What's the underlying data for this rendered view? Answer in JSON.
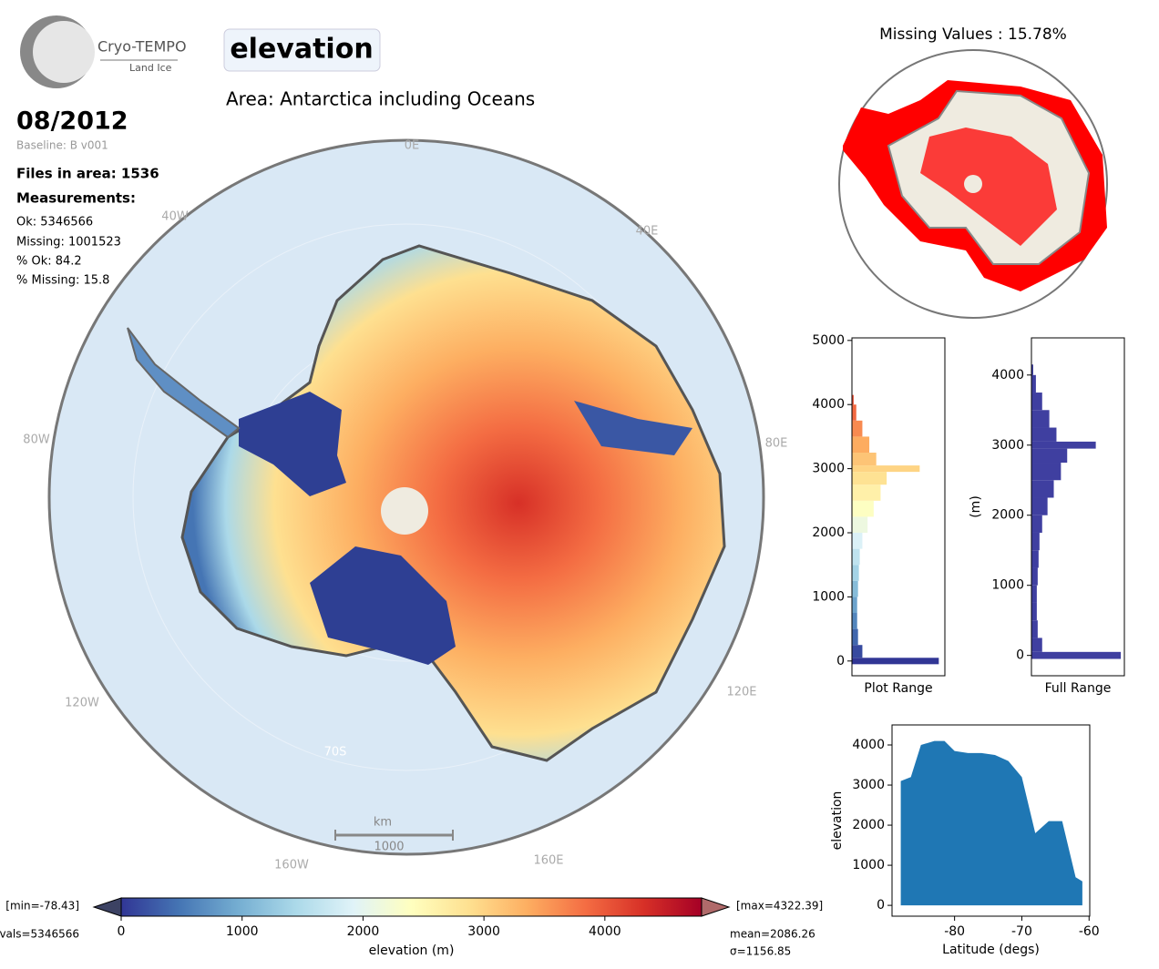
{
  "header": {
    "logo_title": "Cryo-TEMPO",
    "logo_subtitle": "Land Ice",
    "parameter": "elevation",
    "area": "Area: Antarctica including Oceans",
    "date": "08/2012",
    "baseline": "Baseline: B v001"
  },
  "stats": {
    "files": "Files in area: 1536",
    "heading": "Measurements:",
    "lines": [
      "Ok: 5346566",
      "Missing: 1001523",
      "% Ok: 84.2",
      "% Missing: 15.8"
    ]
  },
  "map": {
    "labels": [
      "0E",
      "40E",
      "80E",
      "120E",
      "160E",
      "160W",
      "120W",
      "80W",
      "40W",
      "70S"
    ],
    "scale_unit": "km",
    "scale_length": "1000"
  },
  "missing_map": {
    "title": "Missing Values : 15.78%"
  },
  "chart_data": [
    {
      "type": "histogram",
      "orientation": "horizontal",
      "xlabel": "Plot Range",
      "bins": [
        -50,
        50,
        250,
        500,
        750,
        1000,
        1250,
        1500,
        1750,
        2000,
        2250,
        2500,
        2750,
        2950,
        3050,
        3250,
        3500,
        3750,
        4000,
        4150
      ],
      "values": [
        100,
        12,
        7,
        6,
        6,
        7,
        8,
        9,
        12,
        18,
        25,
        33,
        40,
        78,
        28,
        20,
        12,
        5,
        2
      ],
      "xlim": [
        0,
        107
      ],
      "ylim": [
        -230,
        5040
      ],
      "yticks": [
        0,
        1000,
        2000,
        3000,
        4000,
        5000
      ],
      "colormap": "RdYlBu_r",
      "clim": [
        0,
        4800
      ]
    },
    {
      "type": "histogram",
      "orientation": "horizontal",
      "xlabel": "Full Range",
      "ylabel": "(m)",
      "bins": [
        -50,
        50,
        250,
        500,
        750,
        1000,
        1250,
        1500,
        1750,
        2000,
        2250,
        2500,
        2750,
        2950,
        3050,
        3250,
        3500,
        3750,
        4000,
        4150
      ],
      "values": [
        100,
        12,
        7,
        6,
        6,
        7,
        8,
        9,
        12,
        18,
        25,
        33,
        40,
        72,
        28,
        20,
        12,
        5,
        2
      ],
      "xlim": [
        0,
        104
      ],
      "ylim": [
        -290,
        4530
      ],
      "yticks": [
        0,
        1000,
        2000,
        3000,
        4000
      ],
      "color": "#3f3fa0"
    },
    {
      "type": "area",
      "xlabel": "Latitude (degs)",
      "ylabel": "elevation",
      "color": "#1f77b4",
      "x": [
        -88,
        -86.5,
        -85,
        -83,
        -81.5,
        -80,
        -78,
        -76,
        -74,
        -72,
        -70,
        -68,
        -66,
        -64,
        -62,
        -61
      ],
      "values": [
        3100,
        3200,
        4000,
        4100,
        4100,
        3850,
        3800,
        3800,
        3750,
        3600,
        3200,
        1800,
        2100,
        2100,
        700,
        600
      ],
      "xlim": [
        -89.3,
        -59.9
      ],
      "ylim": [
        -270,
        4500
      ],
      "xticks": [
        -80,
        -70,
        -60
      ],
      "yticks": [
        0,
        1000,
        2000,
        3000,
        4000
      ]
    },
    {
      "type": "colorbar",
      "colormap": "RdYlBu_r",
      "xlim": [
        0,
        4800
      ],
      "xticks": [
        0,
        1000,
        2000,
        3000,
        4000
      ],
      "xlabel": "elevation (m)",
      "min_label": "[min=-78.43]",
      "max_label": "[max=4322.39]",
      "nvals_label": "vals=5346566",
      "mean_label": "mean=2086.26",
      "sigma_label": "σ=1156.85"
    }
  ]
}
